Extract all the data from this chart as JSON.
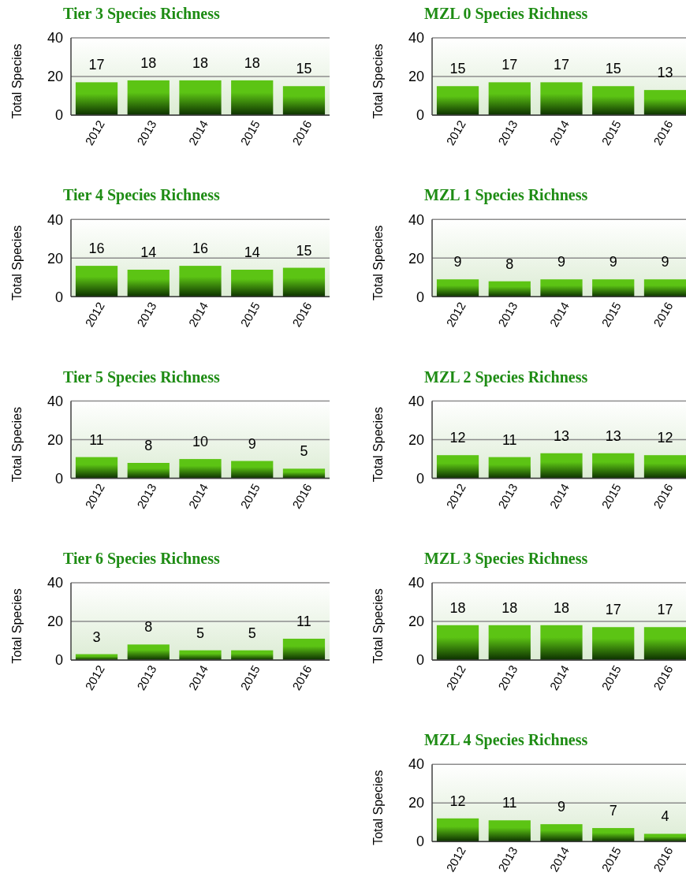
{
  "chart_data": [
    {
      "type": "bar",
      "title": "Tier 3 Species Richness",
      "ylabel": "Total Species",
      "categories": [
        "2012",
        "2013",
        "2014",
        "2015",
        "2016"
      ],
      "values": [
        17,
        18,
        18,
        18,
        15
      ],
      "color": "#5cc414",
      "ylim": [
        0,
        40
      ],
      "yticks": [
        0,
        20,
        40
      ],
      "grid": "y",
      "data_labels": true
    },
    {
      "type": "bar",
      "title": "MZL 0 Species Richness",
      "ylabel": "Total Species",
      "categories": [
        "2012",
        "2013",
        "2014",
        "2015",
        "2016"
      ],
      "values": [
        15,
        17,
        17,
        15,
        13
      ],
      "color": "#5cc414",
      "ylim": [
        0,
        40
      ],
      "yticks": [
        0,
        20,
        40
      ],
      "grid": "y",
      "data_labels": true
    },
    {
      "type": "bar",
      "title": "Tier 4 Species Richness",
      "ylabel": "Total Species",
      "categories": [
        "2012",
        "2013",
        "2014",
        "2015",
        "2016"
      ],
      "values": [
        16,
        14,
        16,
        14,
        15
      ],
      "color": "#5cc414",
      "ylim": [
        0,
        40
      ],
      "yticks": [
        0,
        20,
        40
      ],
      "grid": "y",
      "data_labels": true
    },
    {
      "type": "bar",
      "title": "MZL 1 Species Richness",
      "ylabel": "Total Species",
      "categories": [
        "2012",
        "2013",
        "2014",
        "2015",
        "2016"
      ],
      "values": [
        9,
        8,
        9,
        9,
        9
      ],
      "color": "#5cc414",
      "ylim": [
        0,
        40
      ],
      "yticks": [
        0,
        20,
        40
      ],
      "grid": "y",
      "data_labels": true
    },
    {
      "type": "bar",
      "title": "Tier 5 Species Richness",
      "ylabel": "Total Species",
      "categories": [
        "2012",
        "2013",
        "2014",
        "2015",
        "2016"
      ],
      "values": [
        11,
        8,
        10,
        9,
        5
      ],
      "color": "#5cc414",
      "ylim": [
        0,
        40
      ],
      "yticks": [
        0,
        20,
        40
      ],
      "grid": "y",
      "data_labels": true
    },
    {
      "type": "bar",
      "title": "MZL 2 Species Richness",
      "ylabel": "Total Species",
      "categories": [
        "2012",
        "2013",
        "2014",
        "2015",
        "2016"
      ],
      "values": [
        12,
        11,
        13,
        13,
        12
      ],
      "color": "#5cc414",
      "ylim": [
        0,
        40
      ],
      "yticks": [
        0,
        20,
        40
      ],
      "grid": "y",
      "data_labels": true
    },
    {
      "type": "bar",
      "title": "Tier 6 Species Richness",
      "ylabel": "Total Species",
      "categories": [
        "2012",
        "2013",
        "2014",
        "2015",
        "2016"
      ],
      "values": [
        3,
        8,
        5,
        5,
        11
      ],
      "color": "#5cc414",
      "ylim": [
        0,
        40
      ],
      "yticks": [
        0,
        20,
        40
      ],
      "grid": "y",
      "data_labels": true
    },
    {
      "type": "bar",
      "title": "MZL 3 Species Richness",
      "ylabel": "Total Species",
      "categories": [
        "2012",
        "2013",
        "2014",
        "2015",
        "2016"
      ],
      "values": [
        18,
        18,
        18,
        17,
        17
      ],
      "color": "#5cc414",
      "ylim": [
        0,
        40
      ],
      "yticks": [
        0,
        20,
        40
      ],
      "grid": "y",
      "data_labels": true
    },
    {
      "type": "bar",
      "title": "MZL 4 Species Richness",
      "ylabel": "Total Species",
      "categories": [
        "2012",
        "2013",
        "2014",
        "2015",
        "2016"
      ],
      "values": [
        12,
        11,
        9,
        7,
        4
      ],
      "color": "#5cc414",
      "ylim": [
        0,
        40
      ],
      "yticks": [
        0,
        20,
        40
      ],
      "grid": "y",
      "data_labels": true
    }
  ]
}
